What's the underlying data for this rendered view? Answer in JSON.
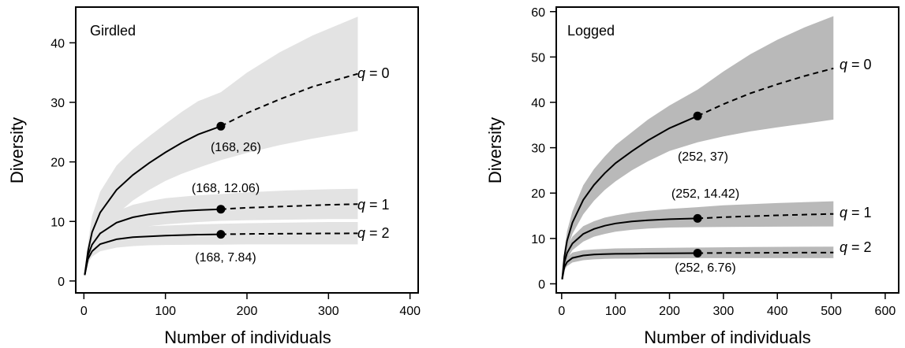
{
  "chart_data": [
    {
      "type": "line",
      "title": "Girdled",
      "xlabel": "Number of individuals",
      "ylabel": "Diversity",
      "xlim": [
        -10,
        410
      ],
      "ylim": [
        -2,
        46
      ],
      "xticks": [
        0,
        100,
        200,
        300,
        400
      ],
      "yticks": [
        0,
        10,
        20,
        30,
        40
      ],
      "band_color": "#e3e3e3",
      "grid": false,
      "series": [
        {
          "name": "q = 0",
          "observed_n": 168,
          "observed_value": 26,
          "interpolated": {
            "x": [
              1,
              5,
              10,
              20,
              40,
              60,
              80,
              100,
              120,
              140,
              168
            ],
            "y": [
              1,
              5,
              8.2,
              11.5,
              15.3,
              17.8,
              19.8,
              21.6,
              23.2,
              24.6,
              26
            ]
          },
          "extrapolated": {
            "x": [
              168,
              200,
              240,
              280,
              336
            ],
            "y": [
              26,
              28.2,
              30.5,
              32.6,
              34.8
            ]
          },
          "band": {
            "x": [
              1,
              5,
              10,
              20,
              40,
              60,
              80,
              100,
              120,
              140,
              168,
              200,
              240,
              280,
              336
            ],
            "lower": [
              1,
              3.6,
              5.5,
              8,
              11.2,
              13.5,
              15.3,
              16.8,
              18,
              19,
              20.3,
              21.5,
              22.8,
              23.9,
              25.2
            ],
            "upper": [
              1,
              6.4,
              10.9,
              15,
              19.4,
              22.1,
              24.3,
              26.4,
              28.4,
              30.2,
              31.7,
              35,
              38.4,
              41.2,
              44.4
            ]
          }
        },
        {
          "name": "q = 1",
          "observed_n": 168,
          "observed_value": 12.06,
          "interpolated": {
            "x": [
              1,
              5,
              10,
              20,
              40,
              60,
              80,
              100,
              120,
              140,
              168
            ],
            "y": [
              1,
              4.3,
              6.1,
              8,
              9.8,
              10.7,
              11.2,
              11.5,
              11.75,
              11.9,
              12.06
            ]
          },
          "extrapolated": {
            "x": [
              168,
              200,
              250,
              300,
              336
            ],
            "y": [
              12.06,
              12.3,
              12.55,
              12.8,
              12.9
            ]
          },
          "band": {
            "x": [
              1,
              5,
              10,
              20,
              40,
              60,
              80,
              100,
              140,
              168,
              200,
              250,
              300,
              336
            ],
            "lower": [
              1,
              3.5,
              5,
              6.5,
              7.9,
              8.7,
              9.2,
              9.5,
              9.9,
              10.1,
              10.2,
              10.3,
              10.4,
              10.4
            ],
            "upper": [
              1,
              5,
              7.2,
              9.5,
              11.7,
              12.8,
              13.4,
              13.9,
              14.4,
              14.6,
              14.9,
              15.2,
              15.4,
              15.5
            ]
          }
        },
        {
          "name": "q = 2",
          "observed_n": 168,
          "observed_value": 7.84,
          "interpolated": {
            "x": [
              1,
              5,
              10,
              20,
              40,
              60,
              80,
              100,
              120,
              140,
              168
            ],
            "y": [
              1,
              3.7,
              5,
              6.2,
              7,
              7.35,
              7.5,
              7.62,
              7.7,
              7.78,
              7.84
            ]
          },
          "extrapolated": {
            "x": [
              168,
              200,
              250,
              300,
              336
            ],
            "y": [
              7.84,
              7.9,
              7.95,
              7.98,
              8
            ]
          },
          "band": {
            "x": [
              1,
              5,
              10,
              20,
              40,
              60,
              80,
              100,
              140,
              168,
              200,
              250,
              300,
              336
            ],
            "lower": [
              1,
              3,
              4.1,
              5,
              5.6,
              5.85,
              6,
              6.05,
              6.1,
              6.1,
              6.15,
              6.15,
              6.15,
              6.15
            ],
            "upper": [
              1,
              4.4,
              6,
              7.5,
              8.5,
              9,
              9.2,
              9.3,
              9.5,
              9.6,
              9.7,
              9.8,
              9.9,
              9.9
            ]
          }
        }
      ],
      "annotations": [
        {
          "text": "(168, 26)",
          "x": 168,
          "y": 26
        },
        {
          "text": "(168, 12.06)",
          "x": 168,
          "y": 12.06
        },
        {
          "text": "(168, 7.84)",
          "x": 168,
          "y": 7.84
        }
      ]
    },
    {
      "type": "line",
      "title": "Logged",
      "xlabel": "Number of individuals",
      "ylabel": "Diversity",
      "xlim": [
        -10,
        625
      ],
      "ylim": [
        -2,
        61
      ],
      "xticks": [
        0,
        100,
        200,
        300,
        400,
        500,
        600
      ],
      "yticks": [
        0,
        10,
        20,
        30,
        40,
        50,
        60
      ],
      "band_color": "#b9b9b9",
      "grid": false,
      "series": [
        {
          "name": "q = 0",
          "observed_n": 252,
          "observed_value": 37,
          "interpolated": {
            "x": [
              1,
              5,
              10,
              20,
              40,
              60,
              80,
              100,
              130,
              160,
              200,
              252
            ],
            "y": [
              1,
              6,
              9.5,
              13.5,
              18.5,
              21.8,
              24.4,
              26.6,
              29.2,
              31.6,
              34.3,
              37
            ]
          },
          "extrapolated": {
            "x": [
              252,
              300,
              350,
              400,
              450,
              504
            ],
            "y": [
              37,
              39.6,
              42,
              44,
              45.8,
              47.5
            ]
          },
          "band": {
            "x": [
              1,
              5,
              10,
              20,
              40,
              60,
              80,
              100,
              130,
              160,
              200,
              252,
              300,
              350,
              400,
              450,
              504
            ],
            "lower": [
              1,
              4.6,
              7.4,
              11,
              15.3,
              18.3,
              20.7,
              22.6,
              25,
              27,
              29.3,
              31.2,
              32.5,
              33.6,
              34.5,
              35.3,
              36.2
            ],
            "upper": [
              1,
              7.4,
              11.6,
              16,
              21.7,
              25.3,
              28.1,
              30.6,
              33.4,
              36.2,
              39.3,
              42.8,
              46.8,
              50.6,
              53.8,
              56.5,
              59
            ]
          }
        },
        {
          "name": "q = 1",
          "observed_n": 252,
          "observed_value": 14.42,
          "interpolated": {
            "x": [
              1,
              5,
              10,
              20,
              40,
              60,
              80,
              100,
              130,
              160,
              200,
              252
            ],
            "y": [
              1,
              4.7,
              6.8,
              8.9,
              11,
              12.1,
              12.8,
              13.3,
              13.75,
              14,
              14.25,
              14.42
            ]
          },
          "extrapolated": {
            "x": [
              252,
              300,
              400,
              504
            ],
            "y": [
              14.42,
              14.7,
              15.1,
              15.4
            ]
          },
          "band": {
            "x": [
              1,
              5,
              10,
              20,
              40,
              60,
              80,
              100,
              130,
              160,
              200,
              252,
              300,
              400,
              504
            ],
            "lower": [
              1,
              3.8,
              5.5,
              7.4,
              9.3,
              10.4,
              11,
              11.5,
              11.9,
              12.2,
              12.4,
              12.5,
              12.55,
              12.6,
              12.65
            ],
            "upper": [
              1,
              5.6,
              8.1,
              10.4,
              12.7,
              13.8,
              14.6,
              15.1,
              15.7,
              16.1,
              16.5,
              16.9,
              17.3,
              17.8,
              18.2
            ]
          }
        },
        {
          "name": "q = 2",
          "observed_n": 252,
          "observed_value": 6.76,
          "interpolated": {
            "x": [
              1,
              5,
              10,
              20,
              40,
              60,
              80,
              100,
              130,
              160,
              200,
              252
            ],
            "y": [
              1,
              3.7,
              4.8,
              5.7,
              6.25,
              6.45,
              6.55,
              6.6,
              6.65,
              6.7,
              6.73,
              6.76
            ]
          },
          "extrapolated": {
            "x": [
              252,
              300,
              400,
              504
            ],
            "y": [
              6.76,
              6.8,
              6.85,
              6.88
            ]
          },
          "band": {
            "x": [
              1,
              5,
              10,
              20,
              40,
              60,
              80,
              100,
              160,
              252,
              350,
              504
            ],
            "lower": [
              1,
              3,
              3.9,
              4.7,
              5.2,
              5.4,
              5.5,
              5.55,
              5.6,
              5.65,
              5.65,
              5.65
            ],
            "upper": [
              1,
              4.5,
              5.8,
              6.9,
              7.4,
              7.6,
              7.7,
              7.8,
              7.9,
              8,
              8.1,
              8.2
            ]
          }
        }
      ],
      "annotations": [
        {
          "text": "(252, 37)",
          "x": 252,
          "y": 37
        },
        {
          "text": "(252, 14.42)",
          "x": 252,
          "y": 14.42
        },
        {
          "text": "(252, 6.76)",
          "x": 252,
          "y": 6.76
        }
      ]
    }
  ]
}
